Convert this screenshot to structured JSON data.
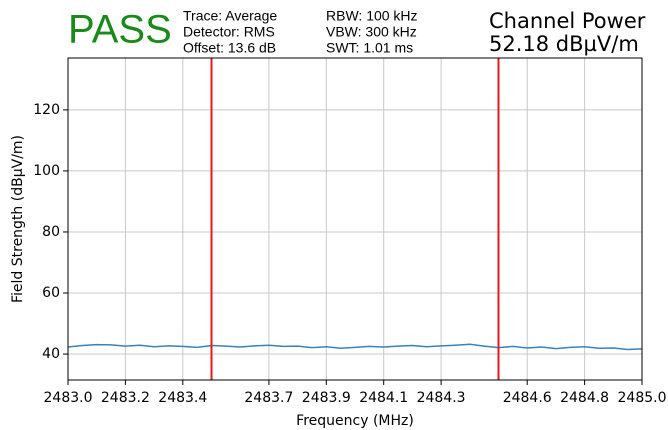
{
  "chart_data": {
    "type": "line",
    "status": "PASS",
    "info": [
      "Trace: Average",
      "Detector: RMS",
      "Offset: 13.6 dB",
      "RBW: 100 kHz",
      "VBW: 300 kHz",
      "SWT: 1.01 ms"
    ],
    "result_title": "Channel Power",
    "result_value": "52.18 dBµV/m",
    "x_label": "Frequency (MHz)",
    "y_label": "Field Strength (dBµV/m)",
    "xlim": [
      2483.0,
      2485.0
    ],
    "ylim": [
      31.5,
      137
    ],
    "xticks": [
      {
        "value": 2483.0,
        "label": "2483.0"
      },
      2483.2,
      2483.4,
      2483.7,
      2483.9,
      2484.1,
      2484.3,
      2484.6,
      2484.8,
      {
        "value": 2485.0,
        "label": "2485.0"
      }
    ],
    "yticks": [
      40,
      60,
      80,
      100,
      120
    ],
    "grid": true,
    "vlines": [
      2483.5,
      2484.5
    ],
    "vline_color": "#e31a1c",
    "series": [
      {
        "color": "#3b82b8",
        "x": [
          2483.0,
          2483.05,
          2483.1,
          2483.15,
          2483.2,
          2483.25,
          2483.3,
          2483.35,
          2483.4,
          2483.45,
          2483.5,
          2483.55,
          2483.6,
          2483.65,
          2483.7,
          2483.75,
          2483.8,
          2483.85,
          2483.9,
          2483.95,
          2484.0,
          2484.05,
          2484.1,
          2484.15,
          2484.2,
          2484.25,
          2484.3,
          2484.35,
          2484.4,
          2484.45,
          2484.5,
          2484.55,
          2484.6,
          2484.65,
          2484.7,
          2484.75,
          2484.8,
          2484.85,
          2484.9,
          2484.95,
          2485.0
        ],
        "values": [
          42.3,
          42.8,
          43.1,
          43.0,
          42.6,
          42.9,
          42.4,
          42.7,
          42.5,
          42.2,
          42.8,
          42.6,
          42.3,
          42.7,
          42.9,
          42.5,
          42.6,
          42.1,
          42.4,
          41.9,
          42.2,
          42.5,
          42.3,
          42.6,
          42.8,
          42.4,
          42.7,
          42.9,
          43.2,
          42.6,
          42.1,
          42.5,
          42.0,
          42.3,
          41.8,
          42.2,
          42.4,
          41.9,
          42.0,
          41.5,
          41.7
        ]
      }
    ]
  }
}
